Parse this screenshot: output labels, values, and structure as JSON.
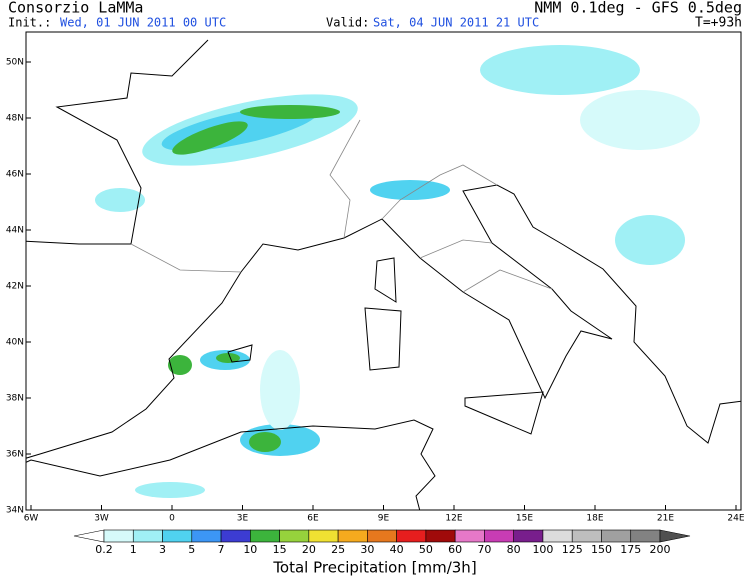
{
  "header": {
    "source": "Consorzio LaMMa",
    "init_label": "Init.:",
    "init_time": "Wed, 01 JUN 2011  00 UTC",
    "valid_label": "Valid:",
    "valid_time": "Sat, 04 JUN 2011  21 UTC",
    "model": "NMM 0.1deg - GFS 0.5deg",
    "forecast_step": "T=+93h"
  },
  "map": {
    "lat_labels": [
      "50N",
      "48N",
      "46N",
      "44N",
      "42N",
      "40N",
      "38N",
      "36N",
      "34N"
    ],
    "lon_labels": [
      "6W",
      "3W",
      "0",
      "3E",
      "6E",
      "9E",
      "12E",
      "15E",
      "18E",
      "21E",
      "24E"
    ]
  },
  "colorbar": {
    "title": "Total Precipitation [mm/3h]",
    "levels": [
      0.2,
      1,
      3,
      5,
      7,
      10,
      15,
      20,
      25,
      30,
      40,
      50,
      60,
      70,
      80,
      100,
      125,
      150,
      175,
      200
    ],
    "colors": [
      "#ffffff",
      "#d6fafa",
      "#a0f0f5",
      "#50d2f0",
      "#3c96f5",
      "#3c3cd2",
      "#3cb43c",
      "#96d23c",
      "#f0e132",
      "#f5aa1e",
      "#e6781e",
      "#e61e1e",
      "#a00a0a",
      "#e678c8",
      "#c83cb4",
      "#781e8c",
      "#dcdcdc",
      "#bebebe",
      "#a0a0a0",
      "#828282",
      "#505050"
    ]
  }
}
